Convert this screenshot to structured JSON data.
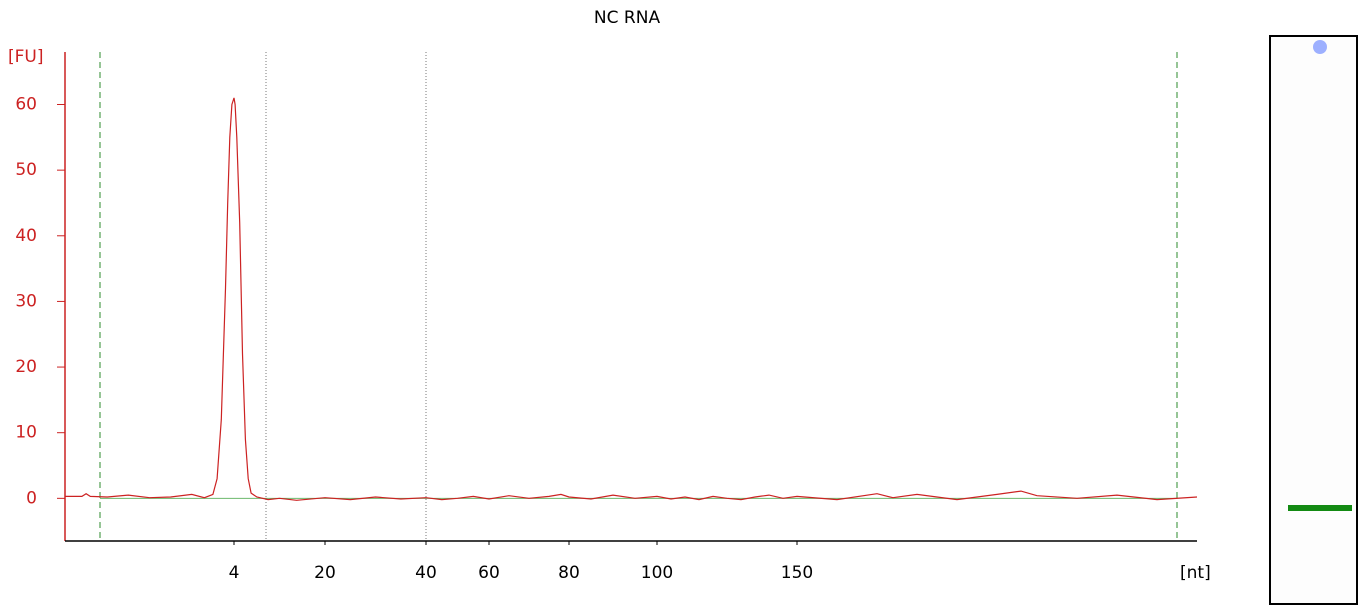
{
  "chart_data": {
    "type": "line",
    "title": "NC RNA",
    "ylabel": "[FU]",
    "xlabel": "[nt]",
    "xlim": [
      0,
      200
    ],
    "xticks": [
      4,
      20,
      40,
      60,
      80,
      100,
      150
    ],
    "ylim": [
      -6.5,
      68
    ],
    "yticks": [
      0,
      10,
      20,
      30,
      40,
      50,
      60
    ],
    "series": [
      {
        "color": "#cc2222",
        "x": [
          0,
          0.4,
          0.5,
          0.6,
          1,
          1.5,
          2,
          2.5,
          3,
          3.3,
          3.5,
          3.6,
          3.7,
          3.75,
          3.8,
          3.85,
          3.9,
          3.95,
          4,
          4.2,
          4.5,
          5,
          5.5,
          6,
          6.5,
          7,
          8,
          10,
          12,
          15,
          20,
          25,
          30,
          35,
          40,
          45,
          50,
          55,
          60,
          65,
          70,
          75,
          78,
          80,
          85,
          90,
          95,
          100,
          105,
          110,
          115,
          120,
          125,
          130,
          135,
          140,
          145,
          150,
          155,
          160,
          162,
          165,
          170,
          175,
          178,
          180,
          185,
          190,
          195,
          200
        ],
        "values": [
          0.3,
          0.3,
          0.7,
          0.3,
          0.2,
          0.5,
          0.1,
          0.2,
          0.6,
          0.1,
          0.6,
          3,
          12,
          22,
          32,
          45,
          55,
          60,
          61,
          60,
          55,
          42,
          22,
          9,
          3,
          0.8,
          0.2,
          -0.2,
          0,
          -0.3,
          0.1,
          -0.2,
          0.2,
          -0.1,
          0.1,
          -0.2,
          0,
          0.3,
          -0.1,
          0.4,
          0,
          0.3,
          0.6,
          0.2,
          -0.1,
          0.5,
          0,
          0.3,
          -0.1,
          0.2,
          -0.2,
          0.3,
          0,
          -0.2,
          0.2,
          0.5,
          0,
          0.3,
          -0.2,
          0.7,
          0.1,
          0.6,
          -0.2,
          0.6,
          1.1,
          0.4,
          0,
          0.5,
          -0.2,
          0.2
        ]
      }
    ]
  }
}
